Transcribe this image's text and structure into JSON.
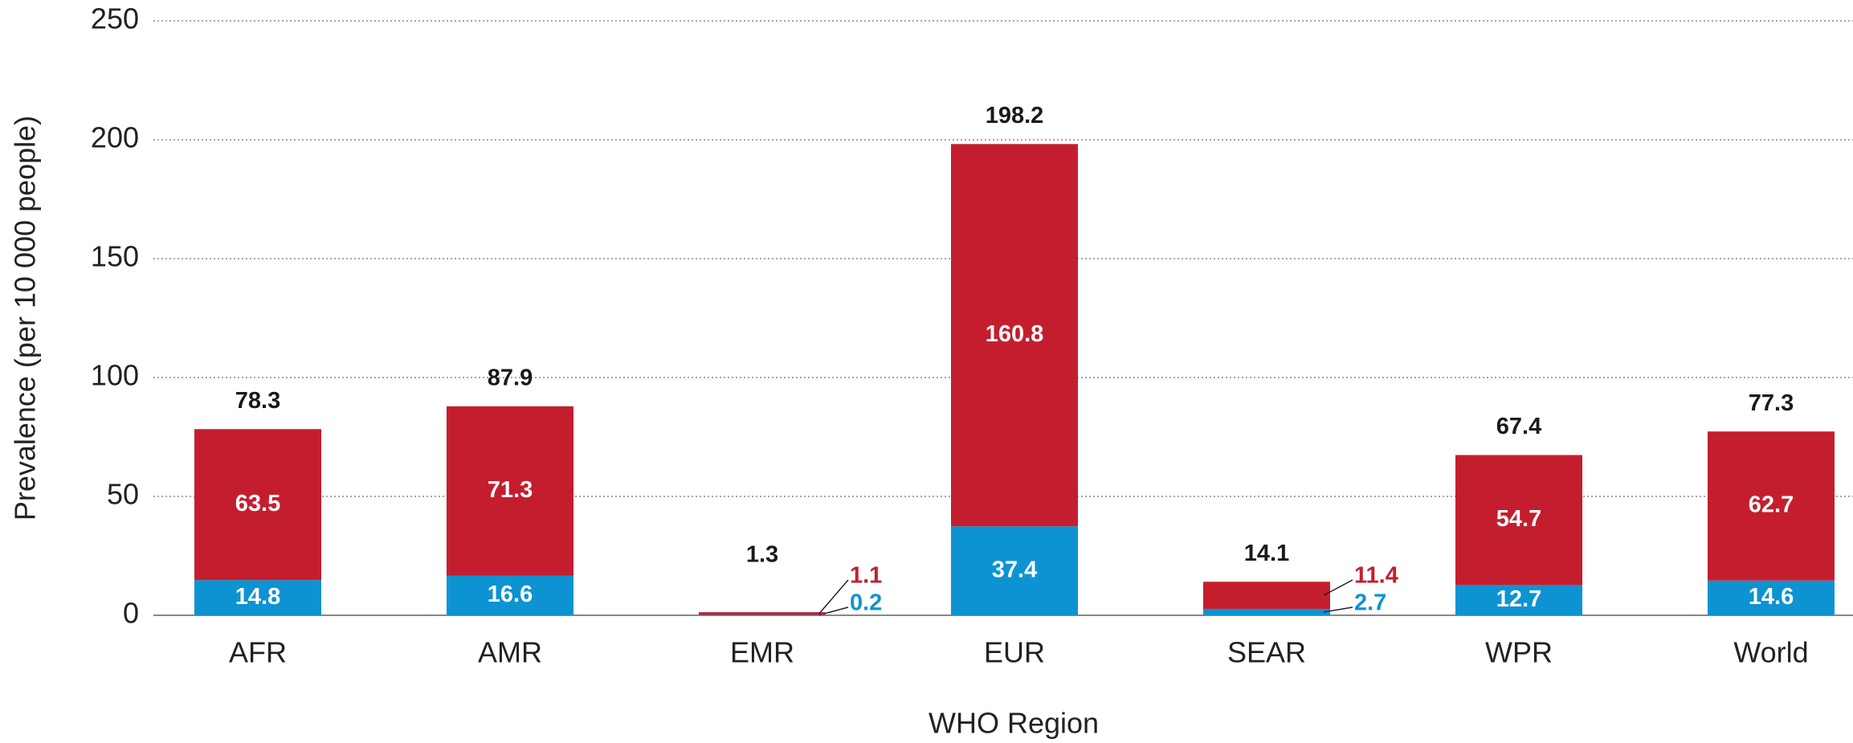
{
  "chart_data": {
    "type": "stacked_bar",
    "y_label": "Prevalence (per 10 000 people)",
    "x_label": "WHO Region",
    "categories": [
      "AFR",
      "AMR",
      "EMR",
      "EUR",
      "SEAR",
      "WPR",
      "World"
    ],
    "series": [
      {
        "color": "#0e93d2",
        "values": [
          14.8,
          16.6,
          0.2,
          37.4,
          2.7,
          12.7,
          14.6
        ]
      },
      {
        "color": "#c41e2e",
        "values": [
          63.5,
          71.3,
          1.1,
          160.8,
          11.4,
          54.7,
          62.7
        ]
      }
    ],
    "totals": [
      78.3,
      87.9,
      1.3,
      198.2,
      14.1,
      67.4,
      77.3
    ],
    "ylim": [
      0,
      250
    ],
    "yticks": [
      0,
      50,
      100,
      150,
      200,
      250
    ],
    "grid": true
  }
}
